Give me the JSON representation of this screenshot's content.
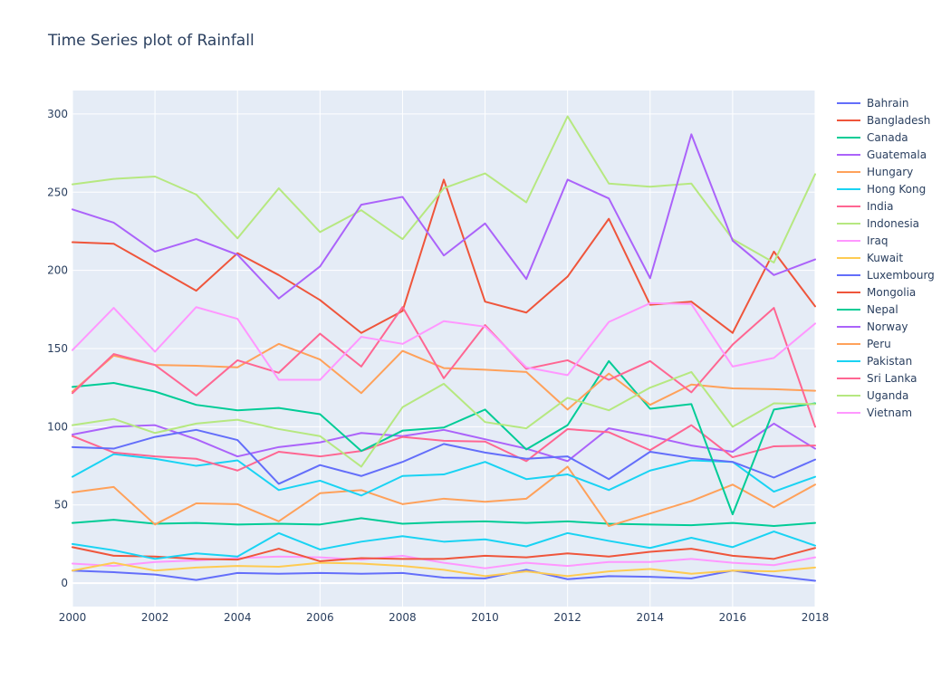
{
  "chart_data": {
    "type": "line",
    "title": "Time Series plot of Rainfall",
    "xlabel": "",
    "ylabel": "",
    "xlim": [
      2000,
      2018
    ],
    "ylim": [
      -15,
      315
    ],
    "x": [
      2000,
      2001,
      2002,
      2003,
      2004,
      2005,
      2006,
      2007,
      2008,
      2009,
      2010,
      2011,
      2012,
      2013,
      2014,
      2015,
      2016,
      2017,
      2018
    ],
    "x_ticks": [
      2000,
      2002,
      2004,
      2006,
      2008,
      2010,
      2012,
      2014,
      2016,
      2018
    ],
    "y_ticks": [
      0,
      50,
      100,
      150,
      200,
      250,
      300
    ],
    "grid": true,
    "legend_position": "right",
    "series": [
      {
        "name": "Bahrain",
        "color": "#636efa",
        "values": [
          8,
          7,
          5.5,
          2,
          6.5,
          6,
          6.5,
          6,
          6.5,
          3.5,
          3,
          8.5,
          2.5,
          4.5,
          4,
          3,
          8,
          4.5,
          1.5
        ]
      },
      {
        "name": "Bangladesh",
        "color": "#EF553B",
        "values": [
          218,
          217,
          202,
          187,
          211,
          197,
          181,
          160,
          174,
          258,
          180,
          173,
          196,
          233,
          178,
          180,
          160,
          212,
          177
        ]
      },
      {
        "name": "Canada",
        "color": "#00cc96",
        "values": [
          38.5,
          40.5,
          38,
          38.5,
          37.5,
          38,
          37.5,
          41.5,
          38,
          39,
          39.5,
          38.5,
          39.5,
          38,
          37.5,
          37,
          38.5,
          36.5,
          38.5
        ]
      },
      {
        "name": "Guatemala",
        "color": "#ab63fa",
        "values": [
          95,
          100,
          101,
          92,
          81,
          87,
          90,
          96,
          94,
          98,
          92,
          86,
          78,
          99,
          94,
          88,
          84,
          102,
          86
        ]
      },
      {
        "name": "Hungary",
        "color": "#FFA15A",
        "values": [
          58,
          61.5,
          37.5,
          51,
          50.5,
          39.5,
          57.5,
          59.5,
          50.5,
          54,
          52,
          54,
          74.5,
          36.5,
          44.5,
          52.5,
          63,
          48.5,
          63
        ]
      },
      {
        "name": "Hong Kong",
        "color": "#19d3f3",
        "values": [
          68,
          82.5,
          79.5,
          75,
          78.5,
          59.5,
          65.5,
          56,
          68.5,
          69.5,
          77.5,
          66.5,
          69.5,
          59.5,
          72,
          78.5,
          77.5,
          58.5,
          68
        ]
      },
      {
        "name": "India",
        "color": "#FF6692",
        "values": [
          94,
          83.5,
          81,
          79.5,
          72,
          84,
          81,
          84.5,
          93.5,
          91,
          90.5,
          78,
          98.5,
          96.5,
          85,
          101,
          80.5,
          87.5,
          88
        ]
      },
      {
        "name": "Indonesia",
        "color": "#B6E880",
        "values": [
          255,
          258.5,
          260,
          248.5,
          220.5,
          252.5,
          224.5,
          238.5,
          220,
          252.5,
          262,
          243.5,
          298.5,
          255.5,
          253.5,
          255.5,
          220,
          205,
          261.5
        ]
      },
      {
        "name": "Iraq",
        "color": "#FF97FF",
        "values": [
          12.5,
          11,
          13.5,
          14.5,
          16,
          17,
          16.5,
          15,
          17.5,
          13,
          9.5,
          13,
          11,
          13.5,
          13.5,
          15.5,
          13,
          11.5,
          16.5
        ]
      },
      {
        "name": "Kuwait",
        "color": "#FECB52",
        "values": [
          8,
          13,
          8,
          10,
          11,
          10.5,
          13,
          12.5,
          11,
          8.5,
          4.5,
          7.5,
          4.5,
          7.5,
          9,
          6,
          8,
          7.5,
          10
        ]
      },
      {
        "name": "Luxembourg",
        "color": "#636efa",
        "values": [
          87,
          86,
          93.5,
          98,
          91.5,
          63.5,
          75.5,
          68.5,
          77.5,
          89,
          83.5,
          79.5,
          81,
          66.5,
          84,
          80,
          77.5,
          67.5,
          79
        ]
      },
      {
        "name": "Mongolia",
        "color": "#EF553B",
        "values": [
          23,
          17.5,
          17,
          15.5,
          15,
          22,
          14,
          16,
          15.5,
          15.5,
          17.5,
          16.5,
          19,
          17,
          20,
          22,
          17.5,
          15.5,
          22.5
        ]
      },
      {
        "name": "Nepal",
        "color": "#00cc96",
        "values": [
          125.5,
          128,
          122.5,
          114,
          110.5,
          112,
          108,
          84.5,
          97.5,
          99.5,
          111,
          85.5,
          101,
          142,
          111.5,
          114.5,
          44,
          111,
          115
        ]
      },
      {
        "name": "Norway",
        "color": "#ab63fa",
        "values": [
          239,
          230.5,
          212,
          220,
          210,
          182,
          202.5,
          242,
          247,
          209.5,
          230,
          194.5,
          258,
          246,
          195,
          287,
          219,
          197,
          207
        ]
      },
      {
        "name": "Peru",
        "color": "#FFA15A",
        "values": [
          122.5,
          145.5,
          139.5,
          139,
          138,
          153,
          143,
          121.5,
          148.5,
          137.5,
          136.5,
          135,
          111,
          134,
          114,
          127,
          124.5,
          124,
          123
        ]
      },
      {
        "name": "Pakistan",
        "color": "#19d3f3",
        "values": [
          25,
          21,
          15.5,
          19,
          17,
          32,
          21.5,
          26.5,
          30,
          26.5,
          28,
          23.5,
          32,
          27,
          22.5,
          29,
          23,
          33,
          24
        ]
      },
      {
        "name": "Sri Lanka",
        "color": "#FF6692",
        "values": [
          121.5,
          146.5,
          139.5,
          120,
          142.5,
          134.5,
          159.5,
          138.5,
          176.5,
          131,
          165,
          137,
          142.5,
          130,
          142,
          122,
          152.5,
          176,
          100
        ]
      },
      {
        "name": "Uganda",
        "color": "#B6E880",
        "values": [
          101,
          105,
          96,
          102,
          104.5,
          98.5,
          94,
          74.5,
          112.5,
          127.5,
          103,
          99,
          118.5,
          110.5,
          125,
          135,
          100,
          115,
          114.5
        ]
      },
      {
        "name": "Vietnam",
        "color": "#FF97FF",
        "values": [
          149,
          176,
          148,
          176.5,
          169,
          130,
          130,
          157.5,
          153,
          167.5,
          164,
          138,
          133,
          167,
          179,
          178.5,
          138.5,
          144,
          166
        ]
      }
    ]
  }
}
